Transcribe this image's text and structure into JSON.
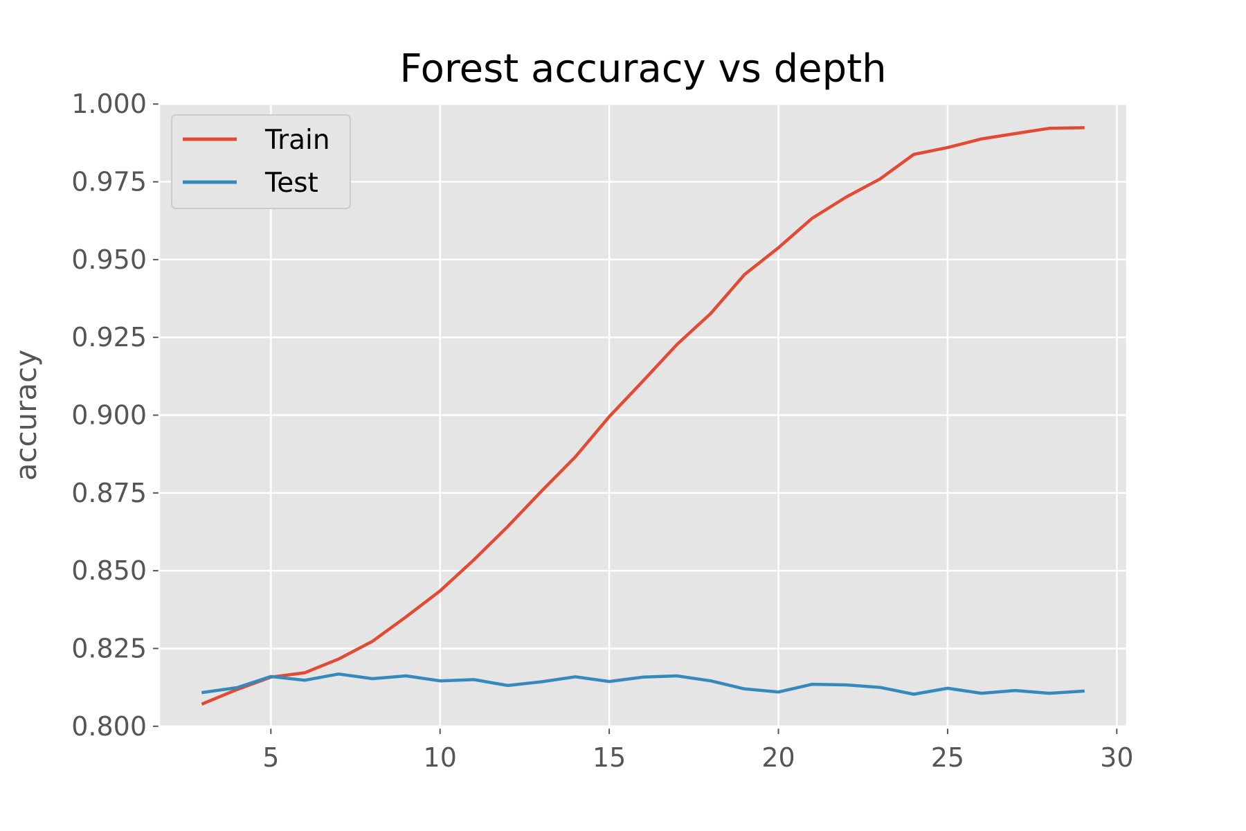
{
  "chart_data": {
    "type": "line",
    "title": "Forest accuracy vs depth",
    "xlabel": "",
    "ylabel": "accuracy",
    "xlim": [
      1.7,
      30.3
    ],
    "ylim": [
      0.7995,
      1.0005
    ],
    "x_ticks": [
      5,
      10,
      15,
      20,
      25,
      30
    ],
    "y_ticks": [
      0.8,
      0.825,
      0.85,
      0.875,
      0.9,
      0.925,
      0.95,
      0.975,
      1.0
    ],
    "y_tick_labels": [
      "0.800",
      "0.825",
      "0.850",
      "0.875",
      "0.900",
      "0.925",
      "0.950",
      "0.975",
      "1.000"
    ],
    "x_tick_labels": [
      "5",
      "10",
      "15",
      "20",
      "25",
      "30"
    ],
    "grid": true,
    "legend": "top-left",
    "x": [
      3,
      4,
      5,
      6,
      7,
      8,
      9,
      10,
      11,
      12,
      13,
      14,
      15,
      16,
      17,
      18,
      19,
      20,
      21,
      22,
      23,
      24,
      25,
      26,
      27,
      28,
      29
    ],
    "series": [
      {
        "name": "Train",
        "color": "#E24A33",
        "values": [
          0.8073,
          0.8118,
          0.8158,
          0.8172,
          0.8216,
          0.8273,
          0.8352,
          0.8435,
          0.8535,
          0.8642,
          0.8756,
          0.8866,
          0.8995,
          0.911,
          0.9227,
          0.9327,
          0.9452,
          0.9538,
          0.9633,
          0.9701,
          0.9759,
          0.9838,
          0.986,
          0.9888,
          0.9905,
          0.9922,
          0.9924
        ]
      },
      {
        "name": "Test",
        "color": "#348ABD",
        "values": [
          0.8109,
          0.8124,
          0.816,
          0.8148,
          0.8168,
          0.8153,
          0.8162,
          0.8146,
          0.815,
          0.8131,
          0.8143,
          0.8159,
          0.8144,
          0.8158,
          0.8162,
          0.8146,
          0.812,
          0.811,
          0.8135,
          0.8133,
          0.8125,
          0.8103,
          0.8122,
          0.8106,
          0.8115,
          0.8106,
          0.8113
        ]
      }
    ]
  }
}
